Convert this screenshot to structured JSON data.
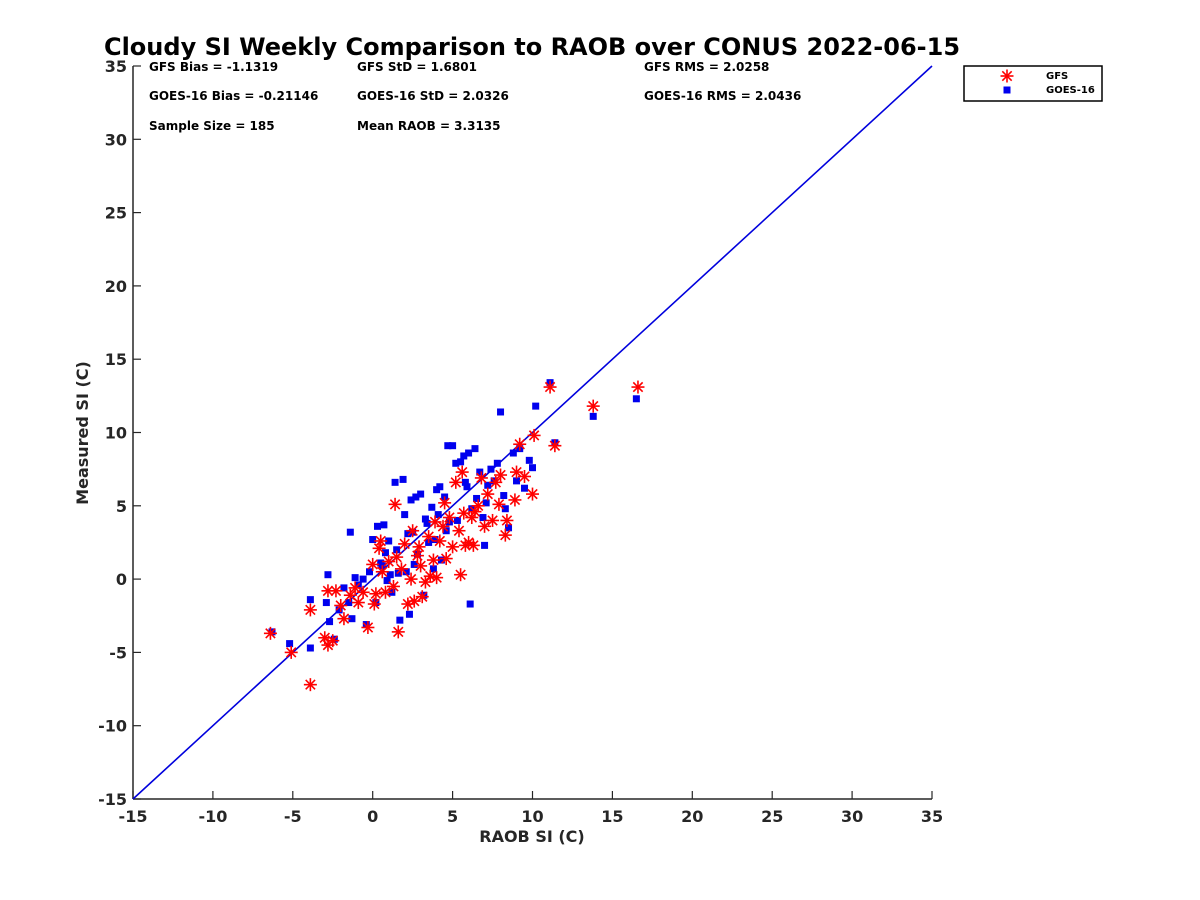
{
  "chart_data": {
    "type": "scatter",
    "title": "Cloudy SI Weekly Comparison to RAOB over CONUS 2022-06-15",
    "xlabel": "RAOB SI (C)",
    "ylabel": "Measured SI (C)",
    "xlim": [
      -15,
      35
    ],
    "ylim": [
      -15,
      35
    ],
    "xticks": [
      "-15",
      "-10",
      "-5",
      "0",
      "5",
      "10",
      "15",
      "20",
      "25",
      "30",
      "35"
    ],
    "yticks": [
      "-15",
      "-10",
      "-5",
      "0",
      "5",
      "10",
      "15",
      "20",
      "25",
      "30",
      "35"
    ],
    "grid": false,
    "legend_position": "outside top-right",
    "reference_line": {
      "from": [
        -15,
        -15
      ],
      "to": [
        35,
        35
      ],
      "color": "#0000dd"
    },
    "stats": [
      "GFS Bias = -1.1319",
      "GFS StD = 1.6801",
      "GFS RMS = 2.0258",
      "GOES-16 Bias = -0.21146",
      "GOES-16 StD = 2.0326",
      "GOES-16 RMS = 2.0436",
      "Sample Size = 185",
      "Mean RAOB = 3.3135"
    ],
    "series": [
      {
        "name": "GFS",
        "marker": "asterisk",
        "color": "#ff0000",
        "points": [
          [
            -6.4,
            -3.7
          ],
          [
            -5.1,
            -5.0
          ],
          [
            -3.9,
            -7.2
          ],
          [
            -3.9,
            -2.1
          ],
          [
            -3.0,
            -4.0
          ],
          [
            -2.8,
            -4.5
          ],
          [
            -2.5,
            -4.2
          ],
          [
            -2.8,
            -0.8
          ],
          [
            -2.3,
            -0.8
          ],
          [
            -2.0,
            -1.8
          ],
          [
            -1.8,
            -2.7
          ],
          [
            -1.4,
            -1.1
          ],
          [
            -1.1,
            -0.6
          ],
          [
            -0.9,
            -1.6
          ],
          [
            -0.6,
            -0.9
          ],
          [
            -0.3,
            -3.3
          ],
          [
            0.0,
            1.0
          ],
          [
            0.1,
            -1.7
          ],
          [
            0.2,
            -1.0
          ],
          [
            0.4,
            2.1
          ],
          [
            0.6,
            0.5
          ],
          [
            0.8,
            -0.9
          ],
          [
            1.0,
            1.2
          ],
          [
            1.3,
            -0.5
          ],
          [
            1.4,
            5.1
          ],
          [
            1.6,
            -3.6
          ],
          [
            1.8,
            0.7
          ],
          [
            2.0,
            2.4
          ],
          [
            2.2,
            -1.7
          ],
          [
            2.4,
            0.0
          ],
          [
            2.6,
            -1.5
          ],
          [
            2.8,
            1.6
          ],
          [
            3.0,
            0.9
          ],
          [
            3.1,
            -1.2
          ],
          [
            3.3,
            -0.2
          ],
          [
            3.5,
            2.9
          ],
          [
            3.6,
            0.2
          ],
          [
            3.8,
            1.3
          ],
          [
            4.0,
            0.1
          ],
          [
            4.2,
            2.6
          ],
          [
            4.4,
            3.6
          ],
          [
            4.6,
            1.4
          ],
          [
            4.8,
            4.2
          ],
          [
            5.0,
            2.2
          ],
          [
            5.2,
            6.6
          ],
          [
            5.4,
            3.3
          ],
          [
            5.5,
            0.3
          ],
          [
            5.6,
            7.3
          ],
          [
            5.8,
            2.3
          ],
          [
            6.0,
            2.5
          ],
          [
            6.2,
            4.2
          ],
          [
            6.3,
            2.3
          ],
          [
            6.6,
            5.0
          ],
          [
            6.8,
            6.9
          ],
          [
            7.0,
            3.6
          ],
          [
            7.2,
            5.8
          ],
          [
            7.5,
            4.0
          ],
          [
            7.7,
            6.6
          ],
          [
            8.0,
            7.1
          ],
          [
            8.3,
            3.0
          ],
          [
            8.4,
            4.0
          ],
          [
            8.9,
            5.4
          ],
          [
            9.0,
            7.3
          ],
          [
            9.2,
            9.2
          ],
          [
            9.5,
            7.0
          ],
          [
            10.0,
            5.8
          ],
          [
            10.1,
            9.8
          ],
          [
            11.1,
            13.1
          ],
          [
            11.4,
            9.1
          ],
          [
            13.8,
            11.8
          ],
          [
            16.6,
            13.1
          ],
          [
            1.5,
            1.5
          ],
          [
            2.5,
            3.3
          ],
          [
            0.5,
            2.6
          ],
          [
            3.9,
            3.9
          ],
          [
            4.5,
            5.2
          ],
          [
            6.4,
            4.6
          ],
          [
            7.9,
            5.1
          ],
          [
            5.7,
            4.5
          ],
          [
            2.9,
            2.2
          ]
        ]
      },
      {
        "name": "GOES-16",
        "marker": "square",
        "color": "#0000ee",
        "points": [
          [
            -6.3,
            -3.6
          ],
          [
            -5.2,
            -4.4
          ],
          [
            -3.9,
            -1.4
          ],
          [
            -3.9,
            -4.7
          ],
          [
            -2.9,
            -1.6
          ],
          [
            -2.8,
            0.3
          ],
          [
            -2.7,
            -2.9
          ],
          [
            -2.4,
            -4.1
          ],
          [
            -2.1,
            -2.1
          ],
          [
            -1.8,
            -0.6
          ],
          [
            -1.5,
            -1.6
          ],
          [
            -1.3,
            -2.7
          ],
          [
            -1.4,
            3.2
          ],
          [
            -1.1,
            0.1
          ],
          [
            -0.9,
            -0.4
          ],
          [
            -0.6,
            0.0
          ],
          [
            -0.4,
            -3.1
          ],
          [
            -0.2,
            0.5
          ],
          [
            0.0,
            2.7
          ],
          [
            0.2,
            -1.6
          ],
          [
            0.3,
            3.6
          ],
          [
            0.5,
            1.1
          ],
          [
            0.7,
            3.7
          ],
          [
            0.9,
            -0.1
          ],
          [
            1.0,
            2.6
          ],
          [
            1.2,
            -0.9
          ],
          [
            1.4,
            6.6
          ],
          [
            1.5,
            2.0
          ],
          [
            1.7,
            -2.8
          ],
          [
            1.9,
            6.8
          ],
          [
            2.0,
            4.4
          ],
          [
            2.1,
            0.5
          ],
          [
            2.3,
            -2.4
          ],
          [
            2.4,
            5.4
          ],
          [
            2.5,
            3.2
          ],
          [
            2.7,
            5.6
          ],
          [
            2.8,
            1.7
          ],
          [
            3.0,
            5.8
          ],
          [
            3.2,
            -1.1
          ],
          [
            3.3,
            4.1
          ],
          [
            3.5,
            2.5
          ],
          [
            3.7,
            4.9
          ],
          [
            3.8,
            0.7
          ],
          [
            4.0,
            6.1
          ],
          [
            4.2,
            6.3
          ],
          [
            4.3,
            1.3
          ],
          [
            4.5,
            5.6
          ],
          [
            4.7,
            9.1
          ],
          [
            4.8,
            3.9
          ],
          [
            5.0,
            9.1
          ],
          [
            5.2,
            7.9
          ],
          [
            5.3,
            4.0
          ],
          [
            5.5,
            8.0
          ],
          [
            5.7,
            8.4
          ],
          [
            5.8,
            6.6
          ],
          [
            6.0,
            8.6
          ],
          [
            6.1,
            -1.7
          ],
          [
            6.2,
            4.8
          ],
          [
            6.4,
            8.9
          ],
          [
            6.5,
            5.5
          ],
          [
            6.7,
            7.3
          ],
          [
            6.9,
            4.2
          ],
          [
            7.0,
            2.3
          ],
          [
            7.2,
            6.4
          ],
          [
            7.4,
            7.5
          ],
          [
            7.6,
            6.7
          ],
          [
            7.8,
            7.9
          ],
          [
            8.0,
            11.4
          ],
          [
            8.2,
            5.7
          ],
          [
            8.3,
            4.8
          ],
          [
            8.5,
            3.5
          ],
          [
            8.8,
            8.6
          ],
          [
            9.0,
            6.7
          ],
          [
            9.2,
            8.9
          ],
          [
            9.5,
            6.2
          ],
          [
            9.8,
            8.1
          ],
          [
            10.0,
            7.6
          ],
          [
            10.2,
            11.8
          ],
          [
            11.1,
            13.4
          ],
          [
            11.4,
            9.3
          ],
          [
            13.8,
            11.1
          ],
          [
            16.5,
            12.3
          ],
          [
            0.6,
            0.9
          ],
          [
            1.1,
            0.3
          ],
          [
            2.6,
            1.0
          ],
          [
            3.4,
            3.8
          ],
          [
            4.1,
            4.4
          ],
          [
            0.8,
            1.8
          ],
          [
            2.2,
            3.1
          ],
          [
            3.9,
            2.7
          ],
          [
            1.6,
            0.4
          ],
          [
            5.9,
            6.3
          ],
          [
            7.1,
            5.2
          ],
          [
            4.6,
            3.3
          ]
        ]
      }
    ]
  }
}
